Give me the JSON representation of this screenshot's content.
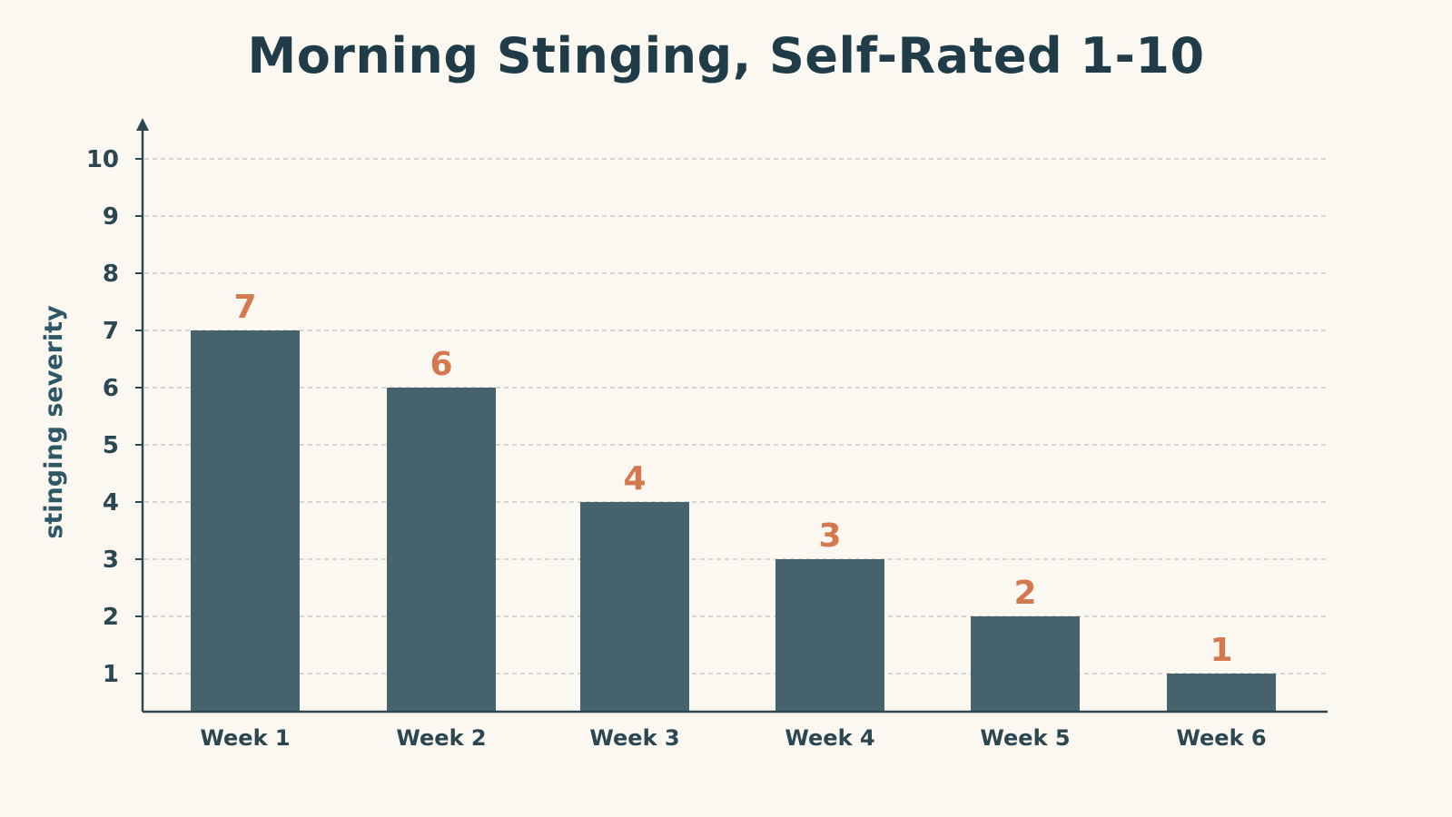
{
  "chart_data": {
    "type": "bar",
    "title": "Morning Stinging, Self-Rated 1-10",
    "xlabel": "",
    "ylabel": "stinging severity",
    "categories": [
      "Week 1",
      "Week 2",
      "Week 3",
      "Week 4",
      "Week 5",
      "Week 6"
    ],
    "values": [
      7,
      6,
      4,
      3,
      2,
      1
    ],
    "value_labels": [
      "7",
      "6",
      "4",
      "3",
      "2",
      "1"
    ],
    "ylim": [
      0.35,
      10
    ],
    "yticks": [
      1,
      2,
      3,
      4,
      5,
      6,
      7,
      8,
      9,
      10
    ],
    "ytick_labels": [
      "1",
      "2",
      "3",
      "4",
      "5",
      "6",
      "7",
      "8",
      "9",
      "10"
    ],
    "grid": true,
    "grid_style": "dashed",
    "legend": "none"
  },
  "colors": {
    "background": "#fbf8f2",
    "bar": "#46626d",
    "value_label": "#d4784f",
    "axis": "#2c4652",
    "grid": "#c9c9c4",
    "title": "#1f3c48"
  }
}
